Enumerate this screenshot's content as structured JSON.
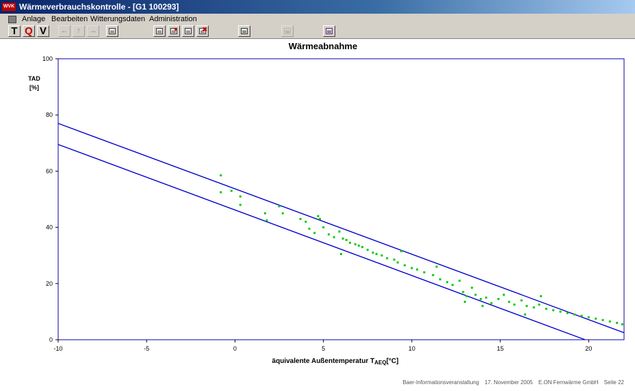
{
  "window": {
    "title": "Wärmeverbrauchskontrolle - [G1 100293]",
    "app_icon_text": "WVK"
  },
  "menu": {
    "items": [
      "Anlage",
      "Bearbeiten",
      "Witterungsdaten",
      "Administration"
    ]
  },
  "toolbar": {
    "buttons": [
      {
        "label": "T",
        "icon": "t-letter",
        "color": "#000000",
        "enabled": true
      },
      {
        "label": "Q",
        "icon": "q-letter",
        "color": "#c00000",
        "enabled": true
      },
      {
        "label": "V",
        "icon": "v-letter",
        "color": "#000000",
        "enabled": true
      },
      {
        "label": "",
        "icon": "arrow-left-icon",
        "enabled": false
      },
      {
        "label": "",
        "icon": "arrow-up-icon",
        "enabled": false
      },
      {
        "label": "",
        "icon": "arrow-right-icon",
        "enabled": false
      },
      {
        "label": "",
        "icon": "edit-form-icon",
        "enabled": true
      },
      {
        "label": "",
        "icon": "printer-icon",
        "enabled": true
      },
      {
        "label": "",
        "icon": "funnel-icon",
        "enabled": true
      },
      {
        "label": "",
        "icon": "pointer-icon",
        "enabled": true
      },
      {
        "label": "",
        "icon": "delete-icon",
        "enabled": true
      },
      {
        "label": "",
        "icon": "chart-edit-icon",
        "enabled": true
      },
      {
        "label": "",
        "icon": "settings-icon",
        "enabled": false
      },
      {
        "label": "",
        "icon": "report-icon",
        "enabled": true
      }
    ]
  },
  "chart_data": {
    "type": "scatter",
    "title": "Wärmeabnahme",
    "ylabel": [
      "TAD",
      "[%]"
    ],
    "xlabel": "äquivalente Außentemperatur T",
    "xlabel_sub": "AEQ",
    "xlabel_unit": "[°C]",
    "xlim": [
      -10,
      22
    ],
    "ylim": [
      0,
      100
    ],
    "x_ticks": [
      -10,
      -5,
      0,
      5,
      10,
      15,
      20
    ],
    "y_ticks": [
      0,
      20,
      40,
      60,
      80,
      100
    ],
    "grid": false,
    "lines": [
      {
        "name": "upper-limit",
        "color": "#0000cc",
        "points": [
          [
            -10,
            77.0
          ],
          [
            22,
            2.5
          ]
        ]
      },
      {
        "name": "lower-limit",
        "color": "#0000cc",
        "points": [
          [
            -10,
            69.5
          ],
          [
            19.8,
            0
          ]
        ]
      }
    ],
    "point_color": "#00cc00",
    "points": [
      [
        -0.8,
        58.5
      ],
      [
        -0.8,
        52.5
      ],
      [
        -0.2,
        53.0
      ],
      [
        0.3,
        51.0
      ],
      [
        0.3,
        48.0
      ],
      [
        1.7,
        45.0
      ],
      [
        1.8,
        42.5
      ],
      [
        2.5,
        47.5
      ],
      [
        2.7,
        45.0
      ],
      [
        3.7,
        43.0
      ],
      [
        4.0,
        42.0
      ],
      [
        4.2,
        39.5
      ],
      [
        4.5,
        38.0
      ],
      [
        4.7,
        44.0
      ],
      [
        4.8,
        43.0
      ],
      [
        5.0,
        40.0
      ],
      [
        5.3,
        37.5
      ],
      [
        5.6,
        36.5
      ],
      [
        5.9,
        38.5
      ],
      [
        6.1,
        36.0
      ],
      [
        6.3,
        35.5
      ],
      [
        6.5,
        34.5
      ],
      [
        6.8,
        34.0
      ],
      [
        7.0,
        33.5
      ],
      [
        7.2,
        33.0
      ],
      [
        7.5,
        32.0
      ],
      [
        7.8,
        31.0
      ],
      [
        8.0,
        30.5
      ],
      [
        8.3,
        30.0
      ],
      [
        8.6,
        29.0
      ],
      [
        9.0,
        28.5
      ],
      [
        9.2,
        27.5
      ],
      [
        9.6,
        26.5
      ],
      [
        10.0,
        25.5
      ],
      [
        10.3,
        25.0
      ],
      [
        10.7,
        24.0
      ],
      [
        11.2,
        23.0
      ],
      [
        11.6,
        21.5
      ],
      [
        12.0,
        20.5
      ],
      [
        12.3,
        19.5
      ],
      [
        12.7,
        21.0
      ],
      [
        12.9,
        17.0
      ],
      [
        13.1,
        15.5
      ],
      [
        13.4,
        18.5
      ],
      [
        13.6,
        16.0
      ],
      [
        13.9,
        14.5
      ],
      [
        14.2,
        15.0
      ],
      [
        14.5,
        13.0
      ],
      [
        14.9,
        14.5
      ],
      [
        15.2,
        16.0
      ],
      [
        15.5,
        13.5
      ],
      [
        15.8,
        12.5
      ],
      [
        16.2,
        14.0
      ],
      [
        16.5,
        12.0
      ],
      [
        16.9,
        11.5
      ],
      [
        17.2,
        12.5
      ],
      [
        17.6,
        11.0
      ],
      [
        18.0,
        10.5
      ],
      [
        18.4,
        10.0
      ],
      [
        18.8,
        9.5
      ],
      [
        19.2,
        9.0
      ],
      [
        19.6,
        8.5
      ],
      [
        20.0,
        8.0
      ],
      [
        20.4,
        7.5
      ],
      [
        20.8,
        7.0
      ],
      [
        21.2,
        6.5
      ],
      [
        21.6,
        6.0
      ],
      [
        21.9,
        5.5
      ],
      [
        13.0,
        13.5
      ],
      [
        9.4,
        31.5
      ],
      [
        11.4,
        26.0
      ],
      [
        17.3,
        15.5
      ],
      [
        6.0,
        30.5
      ],
      [
        14.0,
        12.0
      ],
      [
        16.4,
        9.0
      ]
    ]
  },
  "footer": {
    "event": "Baer-Informationsveranstaltung",
    "date": "17. November 2005",
    "company": "E.ON Fernwärme GmbH",
    "page": "Seite 22"
  }
}
